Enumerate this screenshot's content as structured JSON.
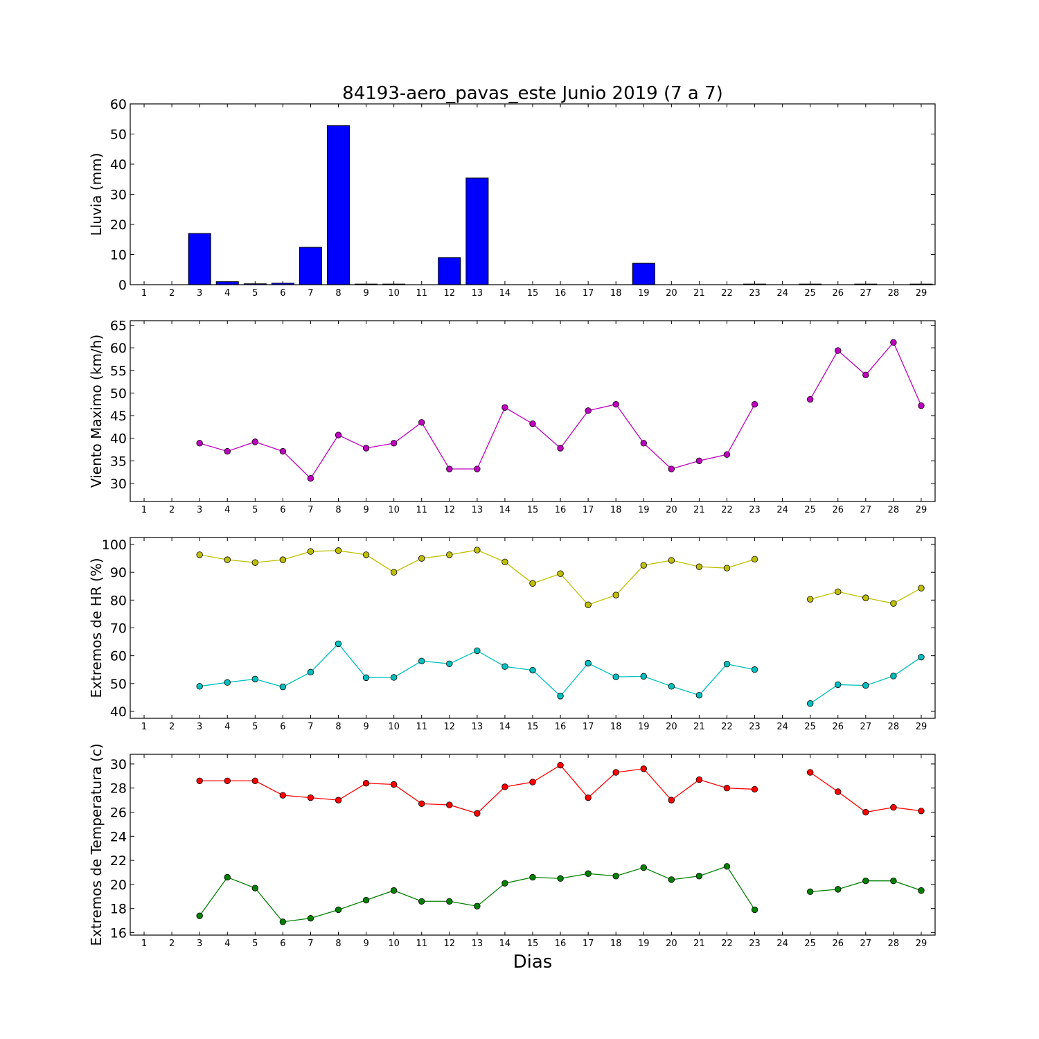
{
  "title": "84193-aero_pavas_este Junio 2019  (7 a 7)",
  "xlabel": "Dias",
  "chart_data": [
    {
      "type": "bar",
      "ylabel": "Lluvia (mm)",
      "x": [
        1,
        2,
        3,
        4,
        5,
        6,
        7,
        8,
        9,
        10,
        11,
        12,
        13,
        14,
        15,
        16,
        17,
        18,
        19,
        20,
        21,
        22,
        23,
        24,
        25,
        26,
        27,
        28,
        29
      ],
      "values": [
        0,
        0,
        17,
        1,
        0.3,
        0.5,
        12.4,
        52.8,
        0.2,
        0.2,
        0,
        9,
        35.4,
        0,
        0,
        0,
        0,
        0,
        7.1,
        0,
        0,
        0,
        0.2,
        0,
        0.2,
        0,
        0.2,
        0,
        0.2
      ],
      "ylim": [
        0,
        60
      ],
      "yticks": [
        0,
        10,
        20,
        30,
        40,
        50,
        60
      ],
      "color": "#0000ff"
    },
    {
      "type": "line",
      "ylabel": "Viento Maximo (km/h)",
      "x": [
        1,
        2,
        3,
        4,
        5,
        6,
        7,
        8,
        9,
        10,
        11,
        12,
        13,
        14,
        15,
        16,
        17,
        18,
        19,
        20,
        21,
        22,
        23,
        24,
        25,
        26,
        27,
        28,
        29
      ],
      "series": [
        {
          "color": "#bf00bf",
          "values": [
            null,
            null,
            38.9,
            37.1,
            39.2,
            37.1,
            31.1,
            40.7,
            37.8,
            38.9,
            43.5,
            33.2,
            33.2,
            46.8,
            43.2,
            37.8,
            46.1,
            47.5,
            38.9,
            33.2,
            35,
            36.4,
            47.5,
            null,
            48.6,
            59.4,
            54,
            61.2,
            47.2
          ]
        }
      ],
      "ylim": [
        26,
        66
      ],
      "yticks": [
        30,
        35,
        40,
        45,
        50,
        55,
        60,
        65
      ]
    },
    {
      "type": "line",
      "ylabel": "Extremos de HR (%)",
      "x": [
        1,
        2,
        3,
        4,
        5,
        6,
        7,
        8,
        9,
        10,
        11,
        12,
        13,
        14,
        15,
        16,
        17,
        18,
        19,
        20,
        21,
        22,
        23,
        24,
        25,
        26,
        27,
        28,
        29
      ],
      "series": [
        {
          "color": "#bfbf00",
          "values": [
            null,
            null,
            96.3,
            94.5,
            93.5,
            94.5,
            97.5,
            97.8,
            96.3,
            90,
            95,
            96.3,
            98,
            93.7,
            86,
            89.5,
            78.3,
            81.8,
            92.5,
            94.3,
            92,
            91.5,
            94.7,
            null,
            80.3,
            83,
            80.8,
            78.8,
            84.3
          ]
        },
        {
          "color": "#00bfbf",
          "values": [
            null,
            null,
            49,
            50.4,
            51.6,
            48.8,
            54.1,
            64.3,
            52.1,
            52.2,
            58.1,
            57.1,
            61.8,
            56.1,
            54.8,
            45.5,
            57.3,
            52.4,
            52.6,
            49,
            45.8,
            57,
            55,
            null,
            42.8,
            49.6,
            49.3,
            52.7,
            59.5
          ]
        }
      ],
      "ylim": [
        37.5,
        102.5
      ],
      "yticks": [
        40,
        50,
        60,
        70,
        80,
        90,
        100
      ]
    },
    {
      "type": "line",
      "ylabel": "Extremos de Temperatura (c)",
      "x": [
        1,
        2,
        3,
        4,
        5,
        6,
        7,
        8,
        9,
        10,
        11,
        12,
        13,
        14,
        15,
        16,
        17,
        18,
        19,
        20,
        21,
        22,
        23,
        24,
        25,
        26,
        27,
        28,
        29
      ],
      "series": [
        {
          "color": "#ff0000",
          "values": [
            null,
            null,
            28.6,
            28.6,
            28.6,
            27.4,
            27.2,
            27,
            28.4,
            28.3,
            26.7,
            26.6,
            25.9,
            28.1,
            28.5,
            29.9,
            27.2,
            29.3,
            29.6,
            27,
            28.7,
            28,
            27.9,
            null,
            29.3,
            27.7,
            26,
            26.4,
            26.1
          ]
        },
        {
          "color": "#008000",
          "values": [
            null,
            null,
            17.4,
            20.6,
            19.7,
            16.9,
            17.2,
            17.9,
            18.7,
            19.5,
            18.6,
            18.6,
            18.2,
            20.1,
            20.6,
            20.5,
            20.9,
            20.7,
            21.4,
            20.4,
            20.7,
            21.5,
            17.9,
            null,
            19.4,
            19.6,
            20.3,
            20.3,
            19.5
          ]
        }
      ],
      "ylim": [
        15.8,
        30.8
      ],
      "yticks": [
        16,
        18,
        20,
        22,
        24,
        26,
        28,
        30
      ]
    }
  ]
}
